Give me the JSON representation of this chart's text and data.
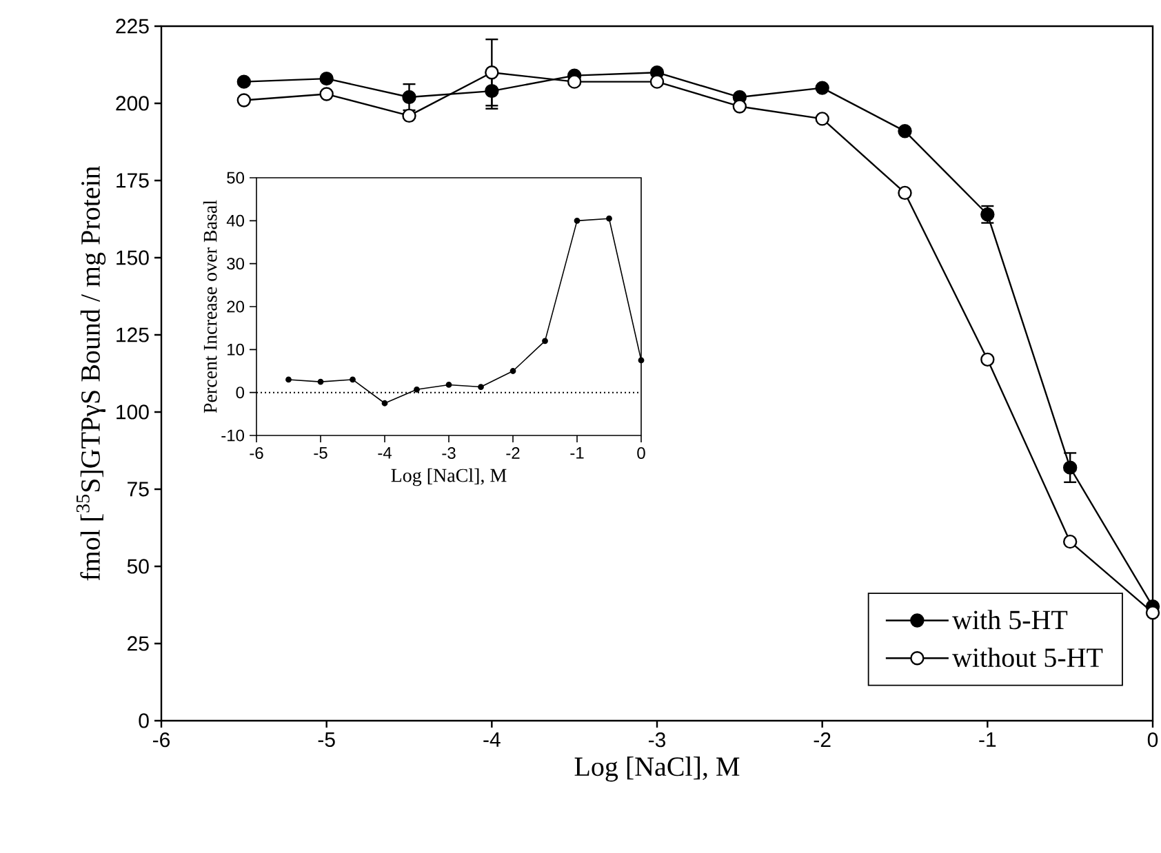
{
  "chart_data": [
    {
      "type": "line",
      "xlabel": "Log [NaCl], M",
      "ylabel": "fmol [$^{35}$S]GTPγS Bound / mg Protein",
      "x": [
        -5.5,
        -5,
        -4.5,
        -4,
        -3.5,
        -3,
        -2.5,
        -2,
        -1.5,
        -1,
        -0.5,
        0
      ],
      "series": [
        {
          "name": "with 5-HT",
          "color": "#000000",
          "values": [
            207,
            208,
            202,
            204,
            209,
            210,
            202,
            205,
            191,
            164,
            82,
            37
          ],
          "errors": [
            null,
            null,
            4.5,
            6,
            null,
            null,
            null,
            null,
            null,
            3,
            5,
            null
          ]
        },
        {
          "name": "without 5-HT",
          "color": "#ffffff",
          "values": [
            201,
            203,
            196,
            210,
            207,
            207,
            199,
            195,
            171,
            117,
            58,
            35
          ],
          "errors": [
            null,
            null,
            null,
            11,
            null,
            null,
            null,
            null,
            null,
            null,
            null,
            null
          ]
        }
      ],
      "xlim": [
        -6,
        0
      ],
      "xticks": [
        -6,
        -5,
        -4,
        -3,
        -2,
        -1,
        0
      ],
      "ylim": [
        0,
        225
      ],
      "yticks": [
        0,
        25,
        50,
        75,
        100,
        125,
        150,
        175,
        200,
        225
      ],
      "marker": "circle",
      "line_style": "solid",
      "legend": "bottom right"
    },
    {
      "type": "line",
      "xlabel": "Log [NaCl], M",
      "ylabel": "Percent Increase over Basal",
      "x": [
        -5.5,
        -5,
        -4.5,
        -4,
        -3.5,
        -3,
        -2.5,
        -2,
        -1.5,
        -1,
        -0.5,
        0
      ],
      "series": [
        {
          "color": "#000000",
          "values": [
            3,
            2.5,
            3,
            -2.5,
            0.7,
            1.8,
            1.3,
            5,
            12,
            40,
            40.5,
            7.5
          ]
        }
      ],
      "xlim": [
        -6,
        0
      ],
      "xticks": [
        -6,
        -5,
        -4,
        -3,
        -2,
        -1,
        0
      ],
      "ylim": [
        -10,
        50
      ],
      "yticks": [
        -10,
        0,
        10,
        20,
        30,
        40,
        50
      ],
      "ref_lines": [
        {
          "axis": "y",
          "value": 0,
          "line_style": "dotted",
          "color": "#000000"
        }
      ],
      "marker": "circle",
      "line_style": "solid"
    }
  ]
}
